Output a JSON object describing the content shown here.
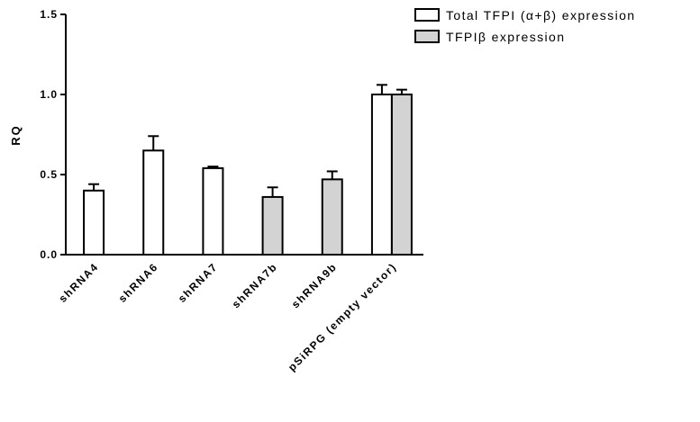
{
  "chart_data": {
    "type": "bar",
    "title": "",
    "xlabel": "",
    "ylabel": "RQ",
    "ylim": [
      0,
      1.5
    ],
    "yticks": [
      "0.0",
      "0.5",
      "1.0",
      "1.5"
    ],
    "grid": false,
    "legend_position": "top-right",
    "categories": [
      "shRNA4",
      "shRNA6",
      "shRNA7",
      "shRNA7b",
      "shRNA9b",
      "pSiRPG (empty vector)"
    ],
    "series": [
      {
        "name": "Total TFPI (α+β) expression",
        "color": "#ffffff",
        "values": [
          0.4,
          0.65,
          0.54,
          null,
          null,
          1.0
        ],
        "errors": [
          0.04,
          0.09,
          0.01,
          null,
          null,
          0.06
        ]
      },
      {
        "name": "TFPIβ expression",
        "color": "#d3d3d3",
        "values": [
          null,
          null,
          null,
          0.36,
          0.47,
          1.0
        ],
        "errors": [
          null,
          null,
          null,
          0.06,
          0.05,
          0.03
        ]
      }
    ]
  }
}
